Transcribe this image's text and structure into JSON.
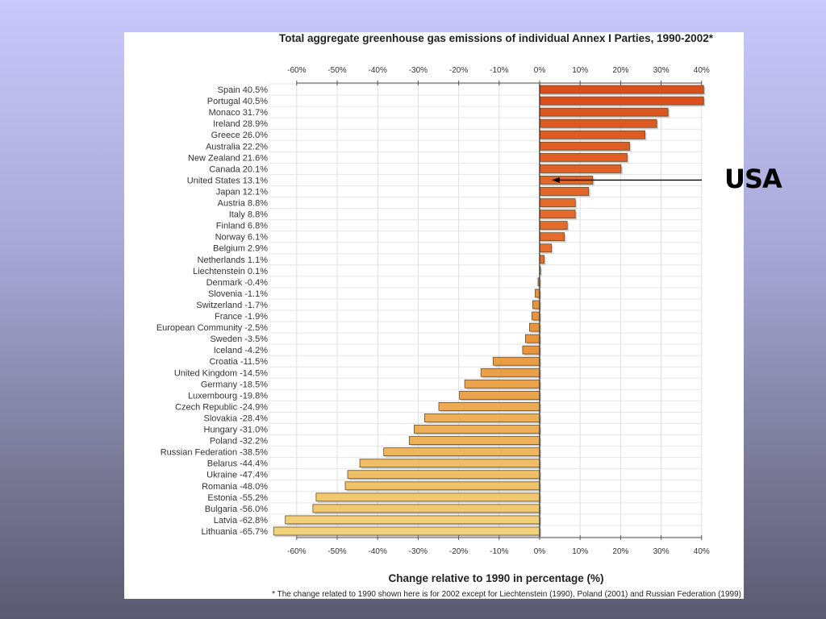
{
  "chart_data": {
    "type": "bar",
    "orientation": "horizontal",
    "title": "Total aggregate greenhouse gas emissions of individual Annex I Parties, 1990-2002*",
    "xlabel": "Change relative to 1990 in percentage (%)",
    "ylabel": "",
    "xlim": [
      -60,
      40
    ],
    "xticks": [
      "-60%",
      "-50%",
      "-40%",
      "-30%",
      "-20%",
      "-10%",
      "0%",
      "10%",
      "20%",
      "30%",
      "40%"
    ],
    "tick_values": [
      -60,
      -50,
      -40,
      -30,
      -20,
      -10,
      0,
      10,
      20,
      30,
      40
    ],
    "grid": true,
    "footnote": "* The change related to 1990 shown here is for 2002 except for Liechtenstein (1990), Poland (2001) and Russian Federation (1999)",
    "categories": [
      "Spain",
      "Portugal",
      "Monaco",
      "Ireland",
      "Greece",
      "Australia",
      "New Zealand",
      "Canada",
      "United States",
      "Japan",
      "Austria",
      "Italy",
      "Finland",
      "Norway",
      "Belgium",
      "Netherlands",
      "Liechtenstein",
      "Denmark",
      "Slovenia",
      "Switzerland",
      "France",
      "European Community",
      "Sweden",
      "Iceland",
      "Croatia",
      "United Kingdom",
      "Germany",
      "Luxembourg",
      "Czech Republic",
      "Slovakia",
      "Hungary",
      "Poland",
      "Russian Federation",
      "Belarus",
      "Ukraine",
      "Romania",
      "Estonia",
      "Bulgaria",
      "Latvia",
      "Lithuania"
    ],
    "values": [
      40.5,
      40.5,
      31.7,
      28.9,
      26.0,
      22.2,
      21.6,
      20.1,
      13.1,
      12.1,
      8.8,
      8.8,
      6.8,
      6.1,
      2.9,
      1.1,
      0.1,
      -0.4,
      -1.1,
      -1.7,
      -1.9,
      -2.5,
      -3.5,
      -4.2,
      -11.5,
      -14.5,
      -18.5,
      -19.8,
      -24.9,
      -28.4,
      -31.0,
      -32.2,
      -38.5,
      -44.4,
      -47.4,
      -48.0,
      -55.2,
      -56.0,
      -62.8,
      -65.7
    ],
    "value_labels": [
      "40.5%",
      "40.5%",
      "31.7%",
      "28.9%",
      "26.0%",
      "22.2%",
      "21.6%",
      "20.1%",
      "13.1%",
      "12.1%",
      "8.8%",
      "8.8%",
      "6.8%",
      "6.1%",
      "2.9%",
      "1.1%",
      "0.1%",
      "-0.4%",
      "-1.1%",
      "-1.7%",
      "-1.9%",
      "-2.5%",
      "-3.5%",
      "-4.2%",
      "-11.5%",
      "-14.5%",
      "-18.5%",
      "-19.8%",
      "-24.9%",
      "-28.4%",
      "-31.0%",
      "-32.2%",
      "-38.5%",
      "-44.4%",
      "-47.4%",
      "-48.0%",
      "-55.2%",
      "-56.0%",
      "-62.8%",
      "-65.7%"
    ],
    "colors": {
      "positive_high": "#d9501c",
      "positive_low": "#e8702e",
      "negative_near": "#e8923a",
      "negative_far": "#f2d27a",
      "bar_border": "#6a4a2a",
      "grid": "#dddddd"
    },
    "annotation": {
      "text": "USA",
      "points_to": "United States",
      "style": "arrow"
    }
  }
}
